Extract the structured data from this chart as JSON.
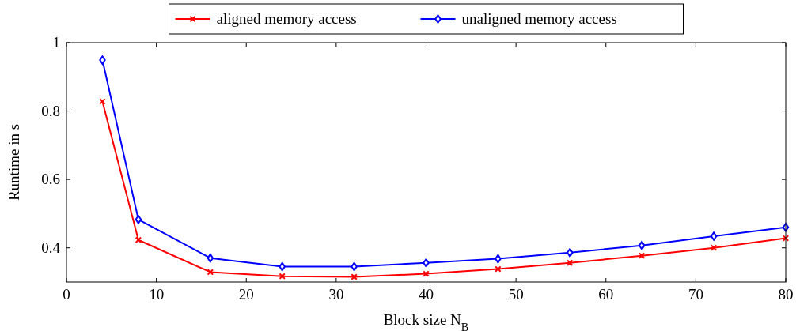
{
  "chart_data": {
    "type": "line",
    "xlabel": "Block size N$_{B}$",
    "ylabel": "Runtime in s",
    "x": [
      4,
      8,
      16,
      24,
      32,
      40,
      48,
      56,
      64,
      72,
      80
    ],
    "series": [
      {
        "name": "aligned memory access",
        "color": "#ff0000",
        "marker": "cross",
        "values": [
          0.828,
          0.423,
          0.329,
          0.317,
          0.315,
          0.324,
          0.338,
          0.356,
          0.377,
          0.4,
          0.428
        ]
      },
      {
        "name": "unaligned memory access",
        "color": "#0000ff",
        "marker": "diamond",
        "values": [
          0.949,
          0.483,
          0.37,
          0.345,
          0.345,
          0.356,
          0.368,
          0.386,
          0.407,
          0.434,
          0.46
        ]
      }
    ],
    "xlim": [
      0,
      80
    ],
    "xticks": [
      0,
      10,
      20,
      30,
      40,
      50,
      60,
      70,
      80
    ],
    "ylim": [
      0.3,
      1
    ],
    "yticks": [
      0.4,
      0.6,
      0.8,
      1
    ],
    "legend": "top",
    "grid": false,
    "line_style": "solid"
  }
}
